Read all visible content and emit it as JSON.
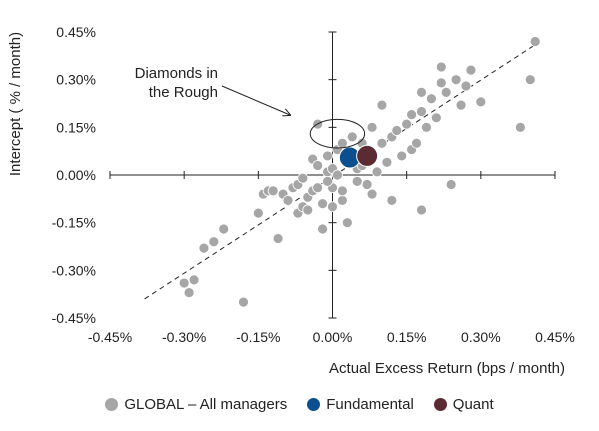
{
  "chart_data": {
    "type": "scatter",
    "xlabel": "Actual Excess Return (bps / month)",
    "ylabel": "Intercept ( % / month)",
    "xlim": [
      -0.45,
      0.45
    ],
    "ylim": [
      -0.45,
      0.45
    ],
    "x_ticks": [
      "-0.45%",
      "-0.30%",
      "-0.15%",
      "0.00%",
      "0.15%",
      "0.30%",
      "0.45%"
    ],
    "y_ticks": [
      "0.45%",
      "0.30%",
      "0.15%",
      "0.00%",
      "-0.15%",
      "-0.30%",
      "-0.45%"
    ],
    "x_tick_values": [
      -0.45,
      -0.3,
      -0.15,
      0.0,
      0.15,
      0.3,
      0.45
    ],
    "y_tick_values": [
      0.45,
      0.3,
      0.15,
      0.0,
      -0.15,
      -0.3,
      -0.45
    ],
    "annotation": {
      "lines": [
        "Diamonds in",
        "the Rough"
      ]
    },
    "trendline": {
      "x": [
        -0.38,
        0.41
      ],
      "y": [
        -0.39,
        0.41
      ]
    },
    "highlight_ellipse": {
      "cx": 0.01,
      "cy": 0.13,
      "rx": 0.055,
      "ry": 0.045
    },
    "legend_position": "bottom",
    "series": [
      {
        "name": "GLOBAL – All managers",
        "color": "#a6a6a6",
        "points": [
          [
            -0.3,
            -0.34
          ],
          [
            -0.29,
            -0.37
          ],
          [
            -0.28,
            -0.33
          ],
          [
            -0.24,
            -0.21
          ],
          [
            -0.22,
            -0.17
          ],
          [
            -0.18,
            -0.4
          ],
          [
            -0.15,
            -0.12
          ],
          [
            -0.14,
            -0.06
          ],
          [
            -0.13,
            -0.05
          ],
          [
            -0.12,
            -0.05
          ],
          [
            -0.11,
            -0.2
          ],
          [
            -0.1,
            -0.06
          ],
          [
            -0.09,
            -0.08
          ],
          [
            -0.08,
            -0.04
          ],
          [
            -0.07,
            -0.12
          ],
          [
            -0.07,
            -0.03
          ],
          [
            -0.06,
            -0.1
          ],
          [
            -0.05,
            -0.11
          ],
          [
            -0.05,
            -0.07
          ],
          [
            -0.04,
            -0.05
          ],
          [
            -0.04,
            0.05
          ],
          [
            -0.03,
            -0.04
          ],
          [
            -0.03,
            0.03
          ],
          [
            -0.02,
            -0.09
          ],
          [
            -0.02,
            -0.17
          ],
          [
            -0.01,
            0.01
          ],
          [
            -0.01,
            0.06
          ],
          [
            0.0,
            -0.1
          ],
          [
            0.0,
            0.02
          ],
          [
            0.0,
            -0.04
          ],
          [
            0.01,
            0.08
          ],
          [
            0.01,
            0.0
          ],
          [
            0.02,
            0.1
          ],
          [
            0.02,
            -0.08
          ],
          [
            0.03,
            0.05
          ],
          [
            0.03,
            -0.15
          ],
          [
            0.04,
            0.12
          ],
          [
            0.05,
            -0.02
          ],
          [
            0.05,
            0.02
          ],
          [
            0.06,
            0.03
          ],
          [
            0.07,
            -0.03
          ],
          [
            0.08,
            0.15
          ],
          [
            0.08,
            -0.06
          ],
          [
            0.09,
            0.01
          ],
          [
            0.1,
            0.1
          ],
          [
            0.1,
            0.22
          ],
          [
            0.11,
            0.04
          ],
          [
            0.12,
            0.12
          ],
          [
            0.12,
            -0.08
          ],
          [
            0.13,
            0.14
          ],
          [
            0.14,
            0.06
          ],
          [
            0.15,
            0.16
          ],
          [
            0.16,
            0.19
          ],
          [
            0.16,
            0.08
          ],
          [
            0.17,
            0.1
          ],
          [
            0.18,
            0.2
          ],
          [
            0.18,
            -0.11
          ],
          [
            0.19,
            0.15
          ],
          [
            0.2,
            0.24
          ],
          [
            0.21,
            0.18
          ],
          [
            0.22,
            0.29
          ],
          [
            0.23,
            0.26
          ],
          [
            0.24,
            -0.03
          ],
          [
            0.25,
            0.3
          ],
          [
            0.26,
            0.22
          ],
          [
            0.27,
            0.28
          ],
          [
            0.28,
            0.33
          ],
          [
            0.3,
            0.23
          ],
          [
            0.38,
            0.15
          ],
          [
            0.4,
            0.3
          ],
          [
            0.41,
            0.42
          ],
          [
            0.22,
            0.34
          ],
          [
            0.18,
            0.26
          ],
          [
            -0.26,
            -0.23
          ],
          [
            -0.03,
            0.16
          ],
          [
            0.02,
            -0.05
          ],
          [
            0.06,
            0.1
          ],
          [
            -0.01,
            -0.02
          ],
          [
            -0.06,
            -0.01
          ],
          [
            0.04,
            0.07
          ]
        ]
      },
      {
        "name": "Fundamental",
        "color": "#0b4f8f",
        "points": [
          [
            0.035,
            0.055
          ]
        ]
      },
      {
        "name": "Quant",
        "color": "#5a2b33",
        "points": [
          [
            0.07,
            0.06
          ]
        ]
      }
    ]
  }
}
